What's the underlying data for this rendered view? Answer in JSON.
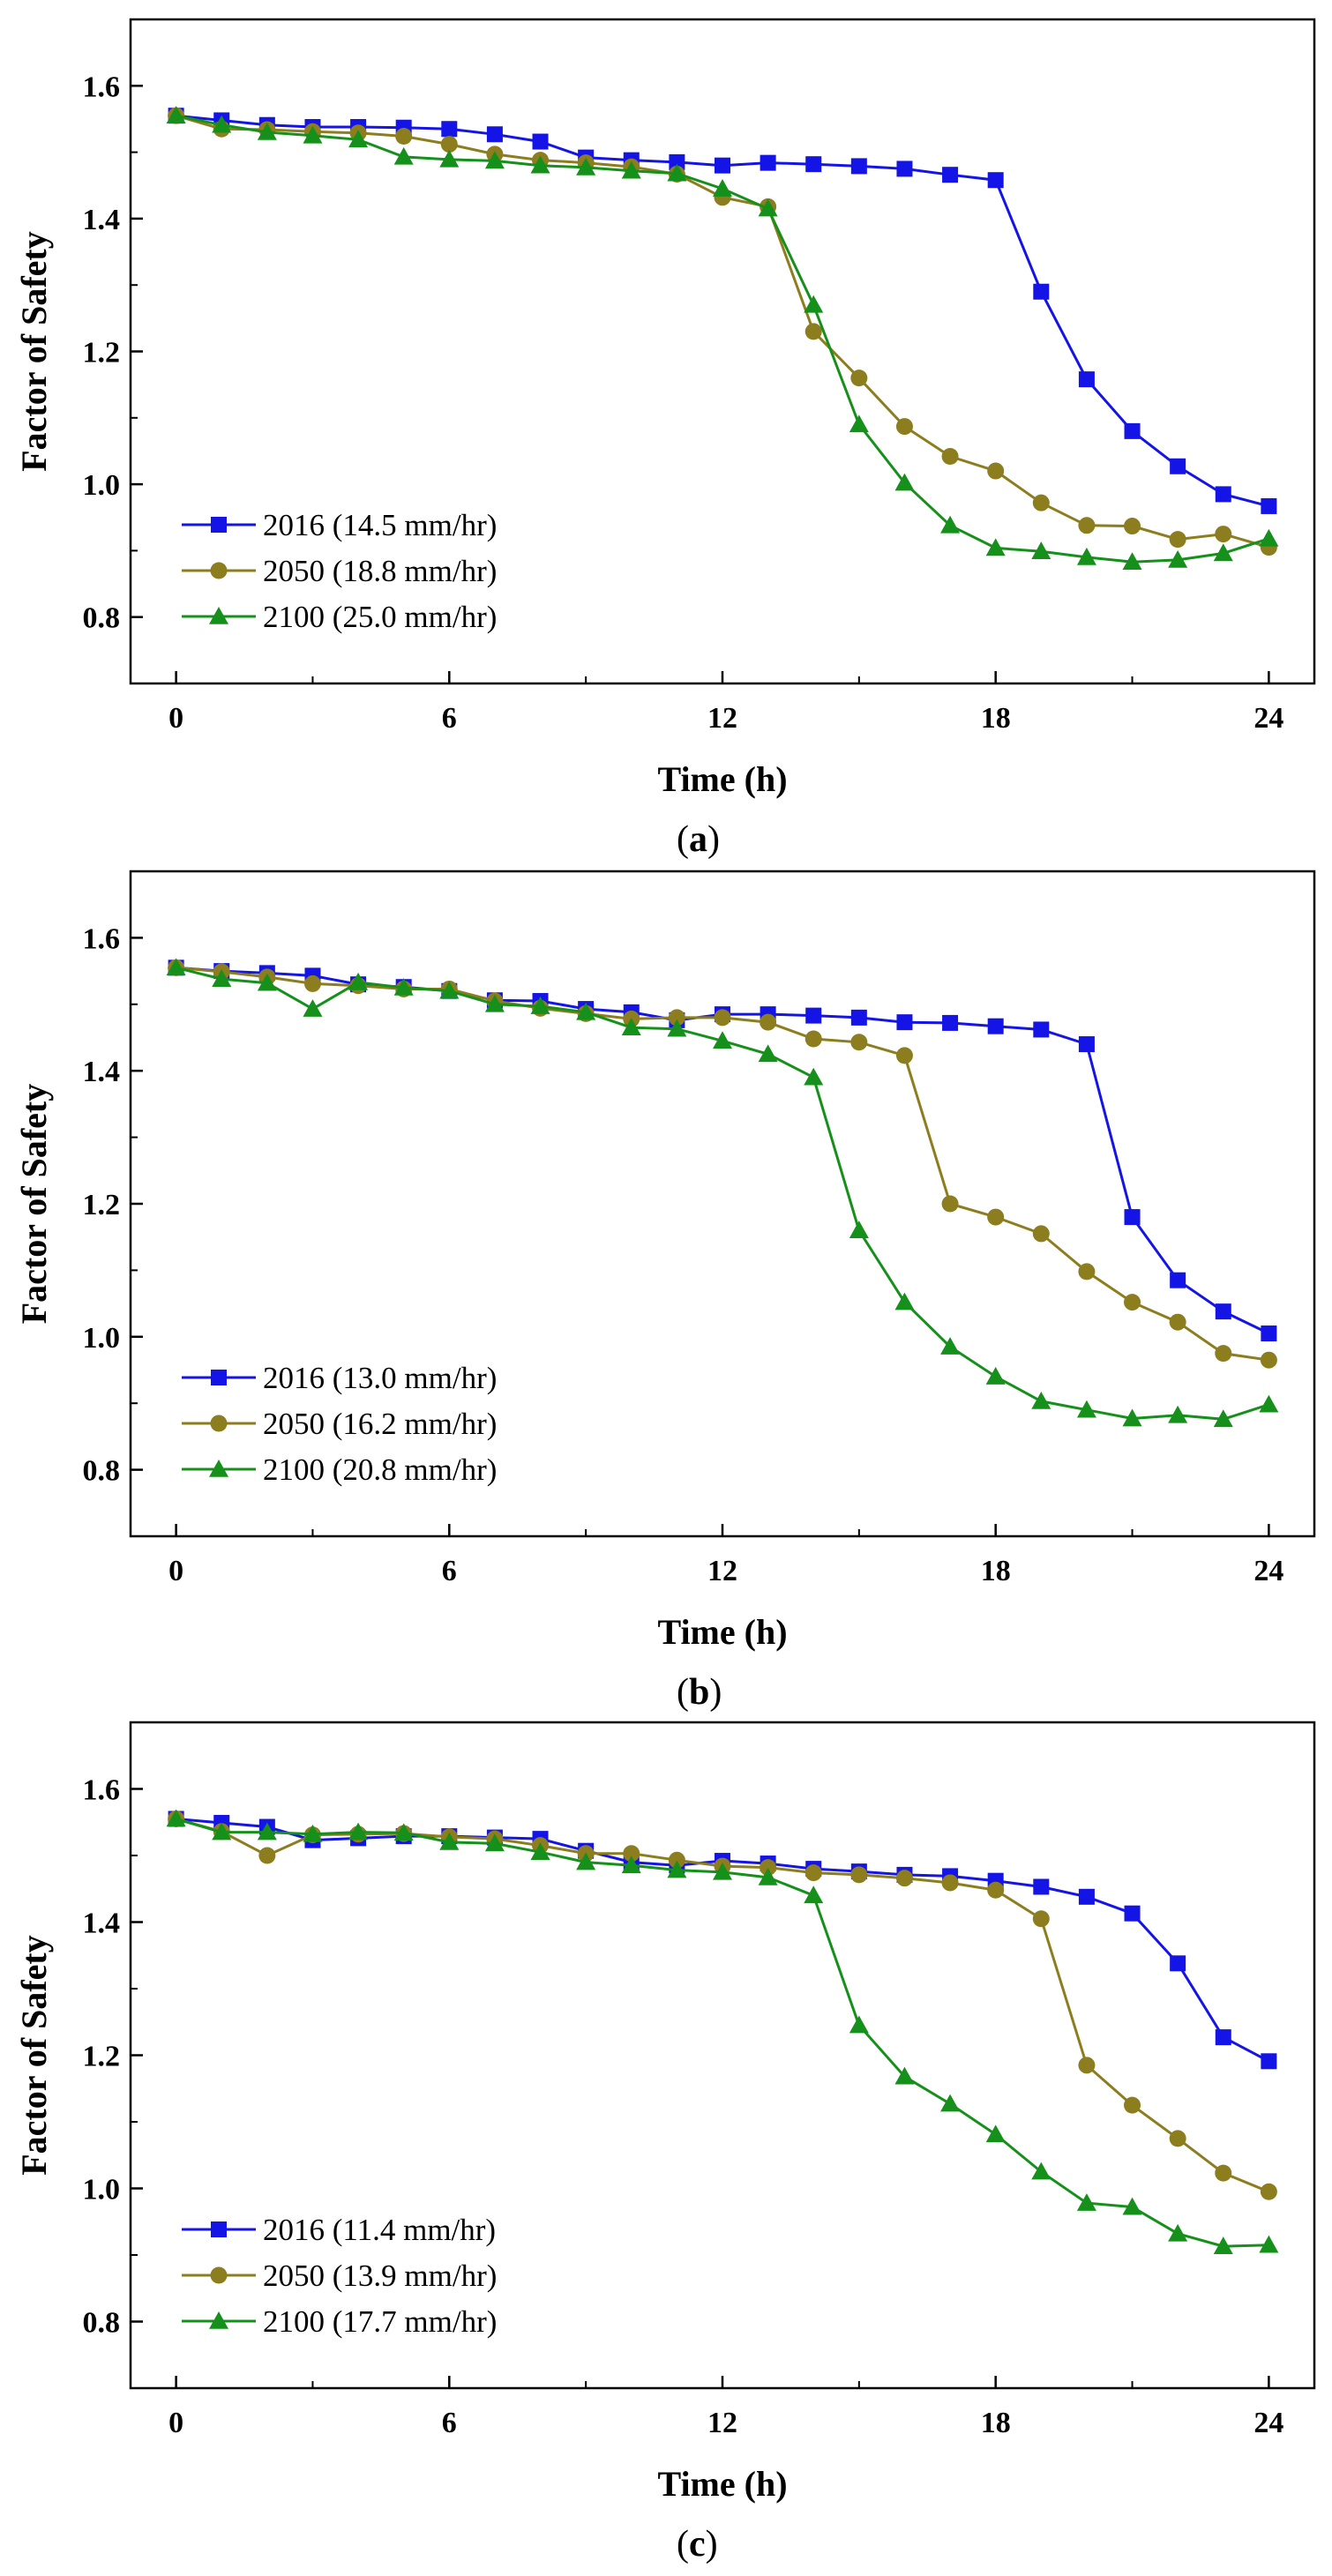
{
  "colors": {
    "2016": "#1414E6",
    "2050": "#8C7D1E",
    "2100": "#15901A",
    "axis": "#000000"
  },
  "x_ticks": [
    "0",
    "6",
    "12",
    "18",
    "24"
  ],
  "y_ticks": [
    "0.8",
    "1.0",
    "1.2",
    "1.4",
    "1.6"
  ],
  "chart_data": [
    {
      "type": "line",
      "panel_label": "a",
      "xlabel": "Time (h)",
      "ylabel": "Factor of Safety",
      "xlim": [
        -1,
        25
      ],
      "ylim": [
        0.7,
        1.7
      ],
      "legend_position": "bottom-left",
      "x": [
        0,
        1,
        2,
        3,
        4,
        5,
        6,
        7,
        8,
        9,
        10,
        11,
        12,
        13,
        14,
        15,
        16,
        17,
        18,
        19,
        20,
        21,
        22,
        23,
        24
      ],
      "series": [
        {
          "name": "2016",
          "label": "2016 (14.5  mm/hr)",
          "marker": "square",
          "values": [
            1.555,
            1.548,
            1.541,
            1.538,
            1.538,
            1.537,
            1.535,
            1.527,
            1.516,
            1.492,
            1.488,
            1.485,
            1.48,
            1.484,
            1.482,
            1.479,
            1.475,
            1.466,
            1.458,
            1.29,
            1.158,
            1.08,
            1.027,
            0.985,
            0.967
          ]
        },
        {
          "name": "2050",
          "label": "2050 (18.8  mm/hr)",
          "marker": "circle",
          "values": [
            1.555,
            1.535,
            1.534,
            1.531,
            1.529,
            1.524,
            1.512,
            1.497,
            1.488,
            1.484,
            1.478,
            1.467,
            1.432,
            1.418,
            1.23,
            1.16,
            1.087,
            1.042,
            1.02,
            0.972,
            0.938,
            0.937,
            0.917,
            0.925,
            0.905
          ]
        },
        {
          "name": "2100",
          "label": "2100 (25.0  mm/hr)",
          "marker": "triangle",
          "values": [
            1.555,
            1.541,
            1.53,
            1.525,
            1.519,
            1.493,
            1.489,
            1.487,
            1.48,
            1.477,
            1.472,
            1.468,
            1.445,
            1.415,
            1.27,
            1.09,
            1.002,
            0.938,
            0.904,
            0.899,
            0.89,
            0.883,
            0.886,
            0.896,
            0.918
          ]
        }
      ]
    },
    {
      "type": "line",
      "panel_label": "b",
      "xlabel": "Time (h)",
      "ylabel": "Factor of Safety",
      "xlim": [
        -1,
        25
      ],
      "ylim": [
        0.7,
        1.7
      ],
      "legend_position": "bottom-left",
      "x": [
        0,
        1,
        2,
        3,
        4,
        5,
        6,
        7,
        8,
        9,
        10,
        11,
        12,
        13,
        14,
        15,
        16,
        17,
        18,
        19,
        20,
        21,
        22,
        23,
        24
      ],
      "series": [
        {
          "name": "2016",
          "label": "2016 (13.0  mm/hr)",
          "marker": "square",
          "values": [
            1.555,
            1.55,
            1.547,
            1.543,
            1.53,
            1.526,
            1.52,
            1.506,
            1.505,
            1.493,
            1.488,
            1.476,
            1.485,
            1.485,
            1.483,
            1.48,
            1.473,
            1.472,
            1.467,
            1.462,
            1.44,
            1.18,
            1.085,
            1.038,
            1.005
          ]
        },
        {
          "name": "2050",
          "label": "2050 (16.2  mm/hr)",
          "marker": "circle",
          "values": [
            1.555,
            1.549,
            1.541,
            1.531,
            1.528,
            1.523,
            1.523,
            1.505,
            1.494,
            1.486,
            1.478,
            1.48,
            1.48,
            1.473,
            1.448,
            1.443,
            1.423,
            1.2,
            1.18,
            1.155,
            1.098,
            1.052,
            1.022,
            0.975,
            0.965
          ]
        },
        {
          "name": "2100",
          "label": "2100 (20.8  mm/hr)",
          "marker": "triangle",
          "values": [
            1.555,
            1.538,
            1.532,
            1.493,
            1.533,
            1.525,
            1.52,
            1.5,
            1.497,
            1.488,
            1.465,
            1.463,
            1.445,
            1.425,
            1.39,
            1.16,
            1.052,
            0.985,
            0.94,
            0.903,
            0.89,
            0.877,
            0.882,
            0.876,
            0.898
          ]
        }
      ]
    },
    {
      "type": "line",
      "panel_label": "c",
      "xlabel": "Time (h)",
      "ylabel": "Factor of Safety",
      "xlim": [
        -1,
        25
      ],
      "ylim": [
        0.7,
        1.7
      ],
      "legend_position": "bottom-left",
      "x": [
        0,
        1,
        2,
        3,
        4,
        5,
        6,
        7,
        8,
        9,
        10,
        11,
        12,
        13,
        14,
        15,
        16,
        17,
        18,
        19,
        20,
        21,
        22,
        23,
        24
      ],
      "series": [
        {
          "name": "2016",
          "label": "2016 (11.4  mm/hr)",
          "marker": "square",
          "values": [
            1.555,
            1.549,
            1.543,
            1.523,
            1.526,
            1.529,
            1.529,
            1.527,
            1.525,
            1.507,
            1.49,
            1.485,
            1.492,
            1.488,
            1.48,
            1.476,
            1.471,
            1.469,
            1.462,
            1.453,
            1.438,
            1.413,
            1.338,
            1.227,
            1.191
          ]
        },
        {
          "name": "2050",
          "label": "2050 (13.9  mm/hr)",
          "marker": "circle",
          "values": [
            1.555,
            1.536,
            1.5,
            1.531,
            1.532,
            1.533,
            1.528,
            1.525,
            1.515,
            1.503,
            1.503,
            1.493,
            1.484,
            1.482,
            1.474,
            1.471,
            1.466,
            1.459,
            1.448,
            1.405,
            1.185,
            1.125,
            1.075,
            1.023,
            0.995
          ]
        },
        {
          "name": "2100",
          "label": "2100 (17.7  mm/hr)",
          "marker": "triangle",
          "values": [
            1.555,
            1.535,
            1.535,
            1.532,
            1.535,
            1.534,
            1.52,
            1.518,
            1.505,
            1.49,
            1.485,
            1.478,
            1.475,
            1.467,
            1.44,
            1.245,
            1.168,
            1.127,
            1.081,
            1.025,
            0.978,
            0.972,
            0.932,
            0.913,
            0.915
          ]
        }
      ]
    }
  ]
}
